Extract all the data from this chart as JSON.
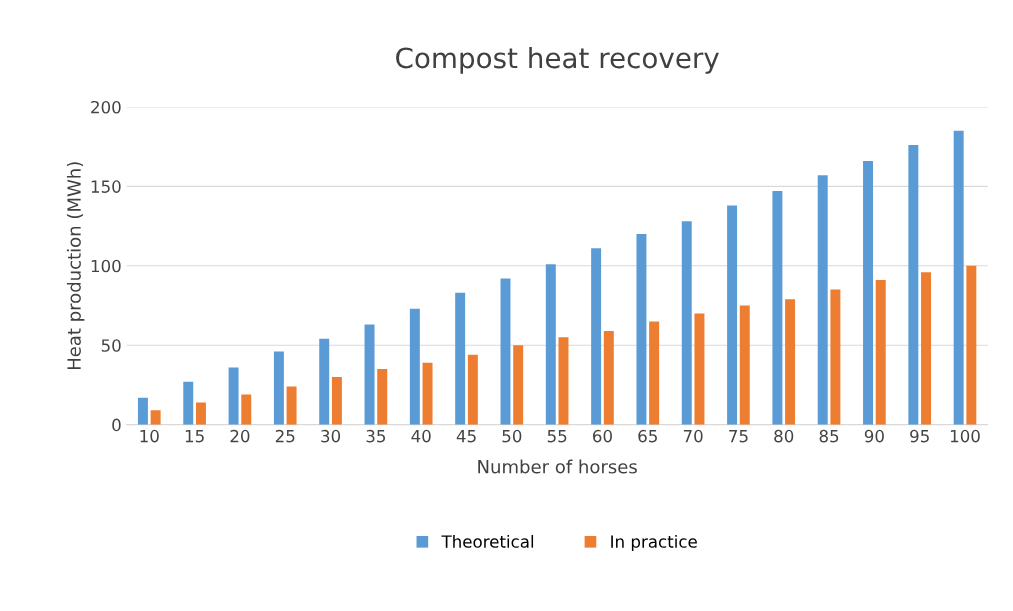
{
  "chart_data": {
    "type": "bar",
    "title": "Compost heat recovery",
    "xlabel": "Number of horses",
    "ylabel": "Heat production (MWh)",
    "categories": [
      "10",
      "15",
      "20",
      "25",
      "30",
      "35",
      "40",
      "45",
      "50",
      "55",
      "60",
      "65",
      "70",
      "75",
      "80",
      "85",
      "90",
      "95",
      "100"
    ],
    "series": [
      {
        "name": "Theoretical",
        "color": "#5b9bd5",
        "values": [
          17,
          27,
          36,
          46,
          54,
          63,
          73,
          83,
          92,
          101,
          111,
          120,
          128,
          138,
          147,
          157,
          166,
          176,
          185
        ]
      },
      {
        "name": "In practice",
        "color": "#ed7d31",
        "values": [
          9,
          14,
          19,
          24,
          30,
          35,
          39,
          44,
          50,
          55,
          59,
          65,
          70,
          75,
          79,
          85,
          91,
          96,
          100
        ]
      }
    ],
    "ylim": [
      0,
      200
    ],
    "yticks": [
      0,
      50,
      100,
      150,
      200
    ],
    "grid": "y",
    "legend": "bottom"
  }
}
